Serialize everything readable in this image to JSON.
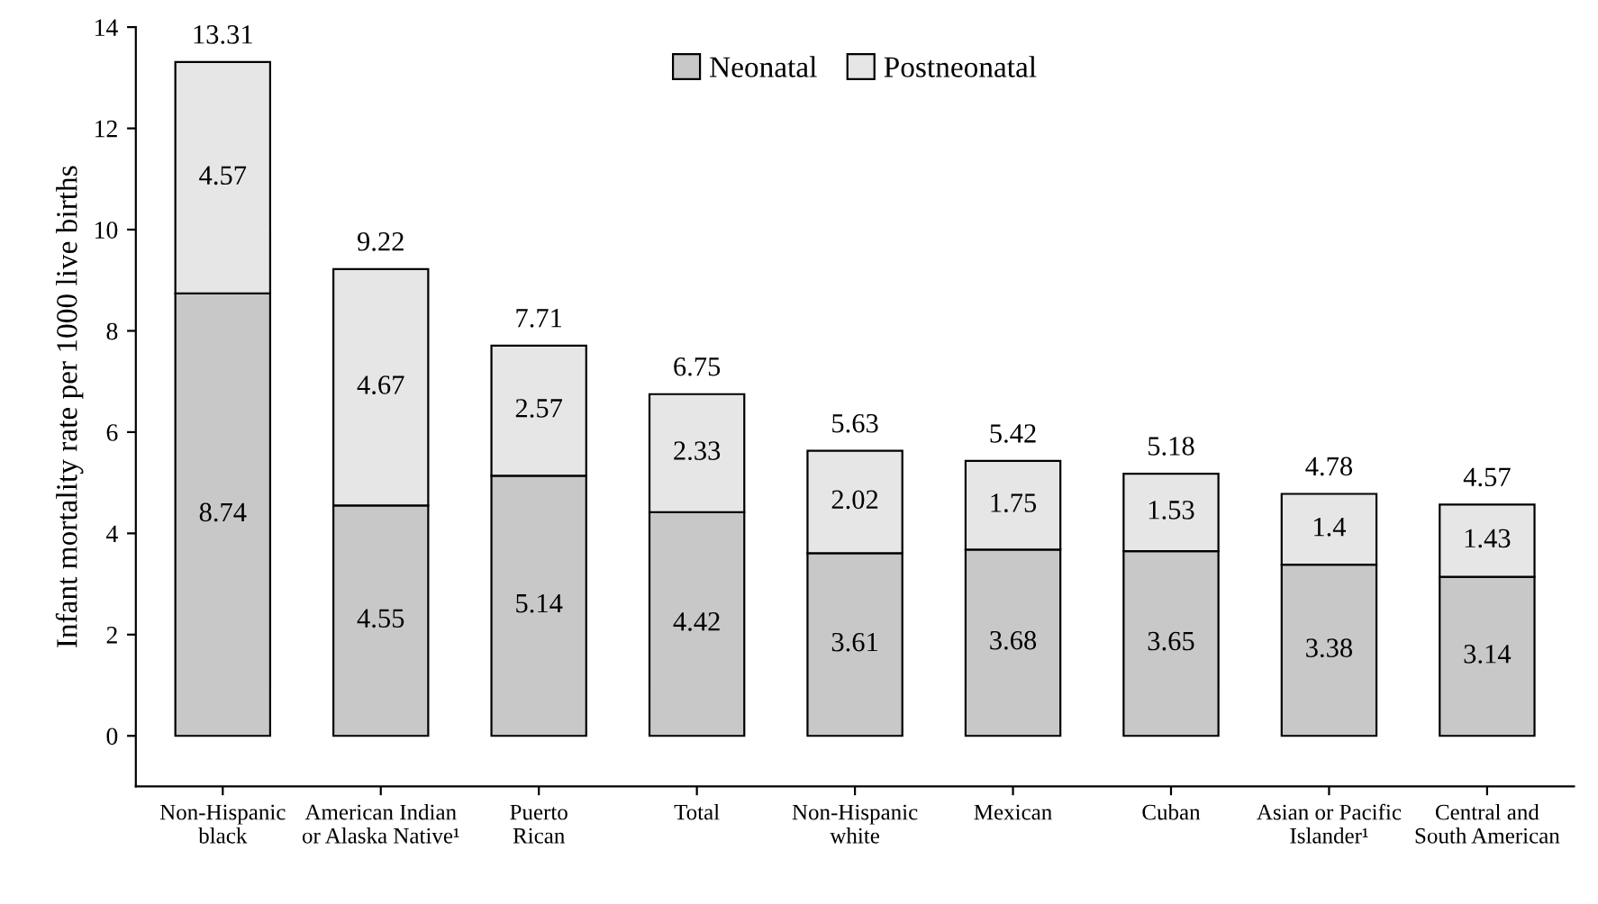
{
  "chart_data": {
    "type": "bar",
    "stacked": true,
    "ylabel": "Infant mortality rate per 1000 live births",
    "categories": [
      "Non-Hispanic\nblack",
      "American Indian\nor Alaska Native¹",
      "Puerto\nRican",
      "Total",
      "Non-Hispanic\nwhite",
      "Mexican",
      "Cuban",
      "Asian or Pacific\nIslander¹",
      "Central and\nSouth American"
    ],
    "series": [
      {
        "name": "Neonatal",
        "color": "#c8c8c8",
        "values": [
          8.74,
          4.55,
          5.14,
          4.42,
          3.61,
          3.68,
          3.65,
          3.38,
          3.14
        ]
      },
      {
        "name": "Postneonatal",
        "color": "#e6e6e6",
        "values": [
          4.57,
          4.67,
          2.57,
          2.33,
          2.02,
          1.75,
          1.53,
          1.4,
          1.43
        ]
      }
    ],
    "totals": [
      "13.31",
      "9.22",
      "7.71",
      "6.75",
      "5.63",
      "5.42",
      "5.18",
      "4.78",
      "4.57"
    ],
    "data_labels": true,
    "legend": "top",
    "grid": false,
    "ylim": [
      -1,
      14
    ],
    "yticks": [
      0,
      2,
      4,
      6,
      8,
      10,
      12,
      14
    ]
  }
}
